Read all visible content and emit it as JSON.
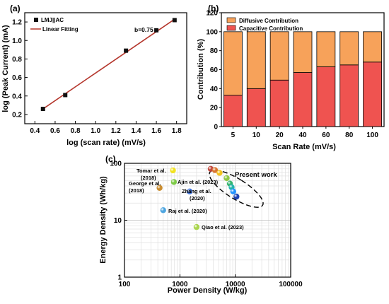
{
  "chart_data": [
    {
      "panel": "(a)",
      "type": "scatter",
      "xlabel": "log (scan rate) (mV/s)",
      "ylabel": "log (Peak Current) (mA)",
      "xlim": [
        0.3,
        1.9
      ],
      "ylim": [
        0.1,
        1.3
      ],
      "xticks": [
        "0.4",
        "0.6",
        "0.8",
        "1.0",
        "1.2",
        "1.4",
        "1.6",
        "1.8"
      ],
      "yticks": [
        "0.2",
        "0.4",
        "0.6",
        "0.8",
        "1.0",
        "1.2"
      ],
      "series": [
        {
          "name": "LMJ||AC",
          "type": "scatter",
          "color": "#111111",
          "x": [
            0.48,
            0.7,
            1.3,
            1.6,
            1.78
          ],
          "y": [
            0.26,
            0.41,
            0.89,
            1.11,
            1.22
          ]
        },
        {
          "name": "Linear Fitting",
          "type": "line",
          "color": "#b5382e",
          "x": [
            0.48,
            1.78
          ],
          "y": [
            0.26,
            1.23
          ]
        }
      ],
      "annotation": "b=0.75",
      "legend": "top-left"
    },
    {
      "panel": "(b)",
      "type": "bar",
      "stacked": true,
      "xlabel": "Scan Rate (mV/s)",
      "ylabel": "Contribution (%)",
      "ylim": [
        0,
        120
      ],
      "yticks": [
        "0",
        "20",
        "40",
        "60",
        "80",
        "100",
        "120"
      ],
      "categories": [
        "5",
        "10",
        "20",
        "40",
        "60",
        "80",
        "100"
      ],
      "series": [
        {
          "name": "Capacitive Contribution",
          "color": "#ef5350",
          "values": [
            33,
            40,
            49,
            57,
            63,
            65,
            68
          ]
        },
        {
          "name": "Diffusive Contribution",
          "color": "#f7a25a",
          "values": [
            67,
            60,
            51,
            43,
            37,
            35,
            32
          ]
        }
      ],
      "legend": "top"
    },
    {
      "panel": "(c)",
      "type": "scatter",
      "log_x": true,
      "log_y": true,
      "xlabel": "Power Density (W/kg)",
      "ylabel": "Energy Density (Wh/kg)",
      "xlim": [
        100,
        100000
      ],
      "ylim": [
        1,
        100
      ],
      "xticks": [
        "100",
        "1000",
        "10000",
        "100000"
      ],
      "yticks": [
        "1",
        "10",
        "100"
      ],
      "points": [
        {
          "label": "Tomar et al. (2018)",
          "x": 750,
          "y": 75,
          "color": "#f2e21c"
        },
        {
          "label": "George et al. (2018)",
          "x": 430,
          "y": 37,
          "color": "#c98a2a"
        },
        {
          "label": "Ajin et al. (2023)",
          "x": 780,
          "y": 47,
          "color": "#7ac943"
        },
        {
          "label": "Zhang et al. (2020)",
          "x": 1500,
          "y": 32,
          "color": "#3a6fd8"
        },
        {
          "label": "Raj et al. (2020)",
          "x": 500,
          "y": 15,
          "color": "#4aa3df"
        },
        {
          "label": "Qiao et al. (2023)",
          "x": 2000,
          "y": 7.6,
          "color": "#a8d44a"
        }
      ],
      "present_work_label": "Present work",
      "present_work": [
        {
          "x": 3600,
          "y": 80,
          "color": "#c0453a"
        },
        {
          "x": 4300,
          "y": 76,
          "color": "#d9742e"
        },
        {
          "x": 5200,
          "y": 68,
          "color": "#f2c21c"
        },
        {
          "x": 7000,
          "y": 55,
          "color": "#8cc63f"
        },
        {
          "x": 8000,
          "y": 44,
          "color": "#2fb36b"
        },
        {
          "x": 8600,
          "y": 38,
          "color": "#20b2aa"
        },
        {
          "x": 9200,
          "y": 32,
          "color": "#1e90ff"
        },
        {
          "x": 10500,
          "y": 26,
          "color": "#1a3fb0"
        }
      ]
    }
  ]
}
